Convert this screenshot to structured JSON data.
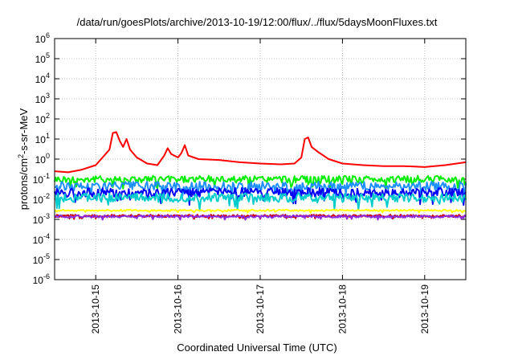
{
  "chart_data": {
    "type": "line",
    "title": "/data/run/goesPlots/archive/2013-10-19/12:00/flux/../flux/5daysMoonFluxes.txt",
    "xlabel": "Coordinated Universal Time (UTC)",
    "ylabel": {
      "prefix": "protons/cm",
      "sup": "2",
      "suffix": "-s-sr-MeV"
    },
    "y_scale": "log",
    "ylim": [
      1e-06,
      1000000.0
    ],
    "y_ticks": [
      {
        "value": 1e-06,
        "base": "10",
        "exp": "-6"
      },
      {
        "value": 1e-05,
        "base": "10",
        "exp": "-5"
      },
      {
        "value": 0.0001,
        "base": "10",
        "exp": "-4"
      },
      {
        "value": 0.001,
        "base": "10",
        "exp": "-3"
      },
      {
        "value": 0.01,
        "base": "10",
        "exp": "-2"
      },
      {
        "value": 0.1,
        "base": "10",
        "exp": "-1"
      },
      {
        "value": 1,
        "base": "10",
        "exp": "0"
      },
      {
        "value": 10.0,
        "base": "10",
        "exp": "1"
      },
      {
        "value": 100.0,
        "base": "10",
        "exp": "2"
      },
      {
        "value": 1000.0,
        "base": "10",
        "exp": "3"
      },
      {
        "value": 10000.0,
        "base": "10",
        "exp": "4"
      },
      {
        "value": 100000.0,
        "base": "10",
        "exp": "5"
      },
      {
        "value": 1000000.0,
        "base": "10",
        "exp": "6"
      }
    ],
    "xlim": [
      "2013-10-14 12:00",
      "2013-10-19 12:00"
    ],
    "x_ticks": [
      "2013-10-15",
      "2013-10-16",
      "2013-10-17",
      "2013-10-18",
      "2013-10-19"
    ],
    "grid": true,
    "series": [
      {
        "color": "#ff0000",
        "points": [
          [
            "2013-10-14 12:00",
            0.25
          ],
          [
            "2013-10-14 16:00",
            0.22
          ],
          [
            "2013-10-14 20:00",
            0.3
          ],
          [
            "2013-10-15 00:00",
            0.5
          ],
          [
            "2013-10-15 02:00",
            1.2
          ],
          [
            "2013-10-15 04:00",
            3.0
          ],
          [
            "2013-10-15 05:00",
            20
          ],
          [
            "2013-10-15 06:00",
            22
          ],
          [
            "2013-10-15 07:00",
            8
          ],
          [
            "2013-10-15 08:00",
            4
          ],
          [
            "2013-10-15 09:00",
            10
          ],
          [
            "2013-10-15 10:00",
            3
          ],
          [
            "2013-10-15 12:00",
            1.2
          ],
          [
            "2013-10-15 15:00",
            0.6
          ],
          [
            "2013-10-15 18:00",
            0.5
          ],
          [
            "2013-10-15 20:00",
            1.5
          ],
          [
            "2013-10-15 21:00",
            3.5
          ],
          [
            "2013-10-15 22:00",
            1.8
          ],
          [
            "2013-10-16 00:00",
            1.2
          ],
          [
            "2013-10-16 01:00",
            2.0
          ],
          [
            "2013-10-16 02:00",
            5.0
          ],
          [
            "2013-10-16 03:00",
            1.5
          ],
          [
            "2013-10-16 06:00",
            1.0
          ],
          [
            "2013-10-16 12:00",
            0.9
          ],
          [
            "2013-10-16 18:00",
            0.7
          ],
          [
            "2013-10-17 00:00",
            0.6
          ],
          [
            "2013-10-17 06:00",
            0.55
          ],
          [
            "2013-10-17 10:00",
            0.6
          ],
          [
            "2013-10-17 12:00",
            1.2
          ],
          [
            "2013-10-17 13:00",
            10
          ],
          [
            "2013-10-17 14:00",
            12
          ],
          [
            "2013-10-17 15:00",
            4
          ],
          [
            "2013-10-17 17:00",
            2.2
          ],
          [
            "2013-10-17 20:00",
            1.0
          ],
          [
            "2013-10-18 00:00",
            0.6
          ],
          [
            "2013-10-18 06:00",
            0.5
          ],
          [
            "2013-10-18 12:00",
            0.45
          ],
          [
            "2013-10-18 18:00",
            0.45
          ],
          [
            "2013-10-19 00:00",
            0.4
          ],
          [
            "2013-10-19 06:00",
            0.5
          ],
          [
            "2013-10-19 12:00",
            0.7
          ]
        ]
      },
      {
        "color": "#00ee00",
        "base": 0.1,
        "swing": 0.35
      },
      {
        "color": "#1e90ff",
        "base": 0.045,
        "swing": 0.45
      },
      {
        "color": "#0000ff",
        "base": 0.022,
        "swing": 0.45
      },
      {
        "color": "#00cccc",
        "base": 0.012,
        "swing": 0.45
      },
      {
        "color": "#ffff00",
        "base": 0.0028,
        "swing": 0.08
      },
      {
        "color": "#cc0000",
        "base": 0.0015,
        "swing": 0.12
      },
      {
        "color": "#8b2be2",
        "base": 0.0014,
        "swing": 0.12
      }
    ]
  }
}
